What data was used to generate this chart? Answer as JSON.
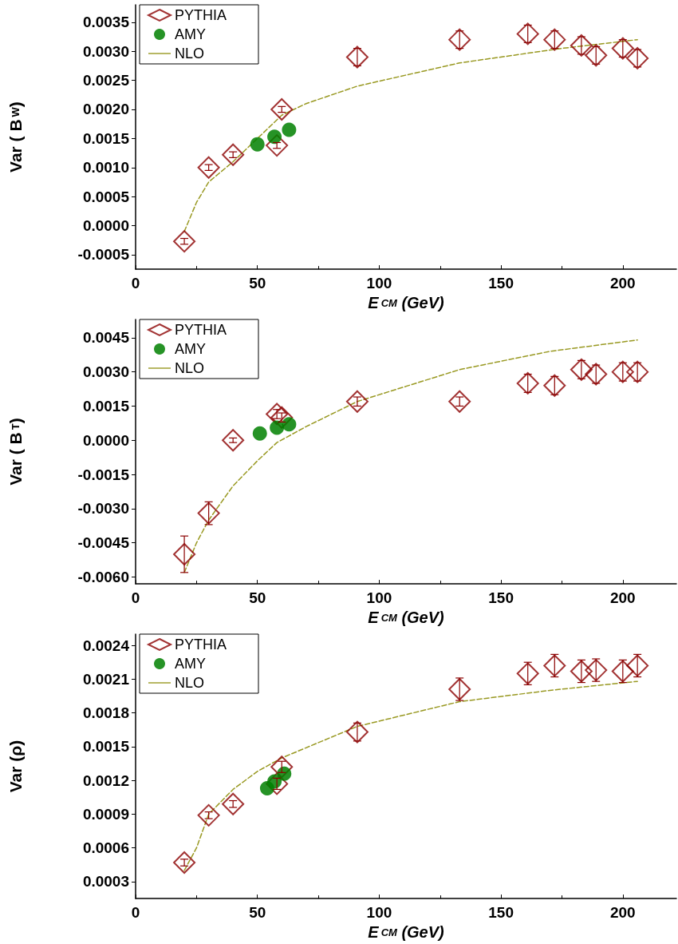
{
  "chart_data": [
    {
      "type": "scatter",
      "ylabel": "Var ( B$_{W}$)",
      "xlabel": "E$_{CM}$ (GeV)",
      "xlim": [
        0,
        222
      ],
      "xticks": [
        0,
        50,
        100,
        150,
        200
      ],
      "ylim": [
        -0.00075,
        0.0038
      ],
      "yticks": [
        {
          "value": -0.0005,
          "label": "-0.0005"
        },
        {
          "value": 0,
          "label": "0.0000"
        },
        {
          "value": 0.0005,
          "label": "0.0005"
        },
        {
          "value": 0.001,
          "label": "0.0010"
        },
        {
          "value": 0.0015,
          "label": "0.0015"
        },
        {
          "value": 0.002,
          "label": "0.0020"
        },
        {
          "value": 0.0025,
          "label": "0.0025"
        },
        {
          "value": 0.003,
          "label": "0.0030"
        },
        {
          "value": 0.0035,
          "label": "0.0035"
        }
      ],
      "grid": false,
      "legend": "top left",
      "series": [
        {
          "name": "PYTHIA",
          "marker": "diamond",
          "color": "#8b0000",
          "x": [
            20,
            30,
            40,
            58,
            60,
            91,
            133,
            161,
            172,
            183,
            189,
            200,
            206
          ],
          "values": [
            -0.00027,
            0.001,
            0.00122,
            0.00138,
            0.002,
            0.0029,
            0.0032,
            0.0033,
            0.0032,
            0.0031,
            0.00293,
            0.00305,
            0.00288
          ],
          "errors": [
            5e-05,
            5e-05,
            5e-05,
            5e-05,
            5e-05,
            0.00015,
            0.00015,
            0.00015,
            0.00015,
            0.00015,
            0.00015,
            0.00015,
            0.00015
          ]
        },
        {
          "name": "AMY",
          "marker": "circle",
          "color": "#008000",
          "x": [
            50,
            57,
            63
          ],
          "values": [
            0.0014,
            0.00153,
            0.00165
          ]
        },
        {
          "name": "NLO",
          "type": "line",
          "marker": "none",
          "line_style": "dashed",
          "color": "#999922",
          "x": [
            20,
            25,
            30,
            40,
            50,
            60,
            70,
            91,
            133,
            175,
            206
          ],
          "values": [
            -0.0001,
            0.0004,
            0.00075,
            0.0011,
            0.0015,
            0.0019,
            0.0021,
            0.0024,
            0.0028,
            0.00305,
            0.0032
          ]
        }
      ]
    },
    {
      "type": "scatter",
      "ylabel": "Var ( B$_{T}$)",
      "xlabel": "E$_{CM}$ (GeV)",
      "xlim": [
        0,
        222
      ],
      "xticks": [
        0,
        50,
        100,
        150,
        200
      ],
      "ylim": [
        -0.0063,
        0.0053
      ],
      "yticks": [
        {
          "value": -0.006,
          "label": "-0.0060"
        },
        {
          "value": -0.0045,
          "label": "-0.0045"
        },
        {
          "value": -0.003,
          "label": "-0.0030"
        },
        {
          "value": -0.0015,
          "label": "-0.0015"
        },
        {
          "value": 0,
          "label": "0.0000"
        },
        {
          "value": 0.0015,
          "label": "0.0015"
        },
        {
          "value": 0.003,
          "label": "0.0030"
        },
        {
          "value": 0.0045,
          "label": "0.0045"
        }
      ],
      "grid": false,
      "legend": "top left",
      "series": [
        {
          "name": "PYTHIA",
          "marker": "diamond",
          "color": "#8b0000",
          "x": [
            20,
            30,
            40,
            58,
            60,
            91,
            133,
            161,
            172,
            183,
            189,
            200,
            206
          ],
          "values": [
            -0.005,
            -0.0032,
            0,
            0.00115,
            0.001,
            0.0017,
            0.0017,
            0.0025,
            0.0024,
            0.0031,
            0.0029,
            0.003,
            0.003
          ],
          "errors": [
            0.0008,
            0.0005,
            0.0001,
            0.0002,
            0.0002,
            0.0002,
            0.0002,
            0.0004,
            0.0004,
            0.0004,
            0.0004,
            0.0004,
            0.0004
          ]
        },
        {
          "name": "AMY",
          "marker": "circle",
          "color": "#008000",
          "x": [
            51,
            58,
            63
          ],
          "values": [
            0.0003,
            0.00055,
            0.0007
          ]
        },
        {
          "name": "NLO",
          "type": "line",
          "marker": "none",
          "line_style": "dashed",
          "color": "#999922",
          "x": [
            20,
            25,
            30,
            40,
            50,
            58,
            70,
            91,
            133,
            170,
            206
          ],
          "values": [
            -0.0058,
            -0.0045,
            -0.0035,
            -0.002,
            -0.0009,
            -0.0001,
            0.0006,
            0.0017,
            0.0031,
            0.0039,
            0.0044
          ]
        }
      ]
    },
    {
      "type": "scatter",
      "ylabel": "Var (ρ)",
      "xlabel": "E$_{CM}$ (GeV)",
      "xlim": [
        0,
        222
      ],
      "xticks": [
        0,
        50,
        100,
        150,
        200
      ],
      "ylim": [
        0.00015,
        0.0025
      ],
      "yticks": [
        {
          "value": 0.0003,
          "label": "0.0003"
        },
        {
          "value": 0.0006,
          "label": "0.0006"
        },
        {
          "value": 0.0009,
          "label": "0.0009"
        },
        {
          "value": 0.0012,
          "label": "0.0012"
        },
        {
          "value": 0.0015,
          "label": "0.0015"
        },
        {
          "value": 0.0018,
          "label": "0.0018"
        },
        {
          "value": 0.0021,
          "label": "0.0021"
        },
        {
          "value": 0.0024,
          "label": "0.0024"
        }
      ],
      "grid": false,
      "legend": "top left",
      "series": [
        {
          "name": "PYTHIA",
          "marker": "diamond",
          "color": "#8b0000",
          "x": [
            20,
            30,
            40,
            58,
            60,
            91,
            133,
            161,
            172,
            183,
            189,
            200,
            206
          ],
          "values": [
            0.00047,
            0.00089,
            0.00099,
            0.00117,
            0.00132,
            0.00163,
            0.00201,
            0.00215,
            0.00222,
            0.00217,
            0.00218,
            0.00217,
            0.00222
          ],
          "errors": [
            3e-05,
            3e-05,
            3e-05,
            5e-05,
            5e-05,
            8e-05,
            0.0001,
            0.0001,
            0.0001,
            0.0001,
            0.0001,
            0.0001,
            0.0001
          ]
        },
        {
          "name": "AMY",
          "marker": "circle",
          "color": "#008000",
          "x": [
            54,
            57,
            61
          ],
          "values": [
            0.00113,
            0.00119,
            0.00126
          ]
        },
        {
          "name": "NLO",
          "type": "line",
          "marker": "none",
          "line_style": "dashed",
          "color": "#999922",
          "x": [
            20,
            25,
            30,
            40,
            50,
            60,
            91,
            133,
            170,
            206
          ],
          "values": [
            0.0004,
            0.0006,
            0.0009,
            0.00112,
            0.00128,
            0.0014,
            0.00168,
            0.0019,
            0.002,
            0.00208
          ]
        }
      ]
    }
  ]
}
